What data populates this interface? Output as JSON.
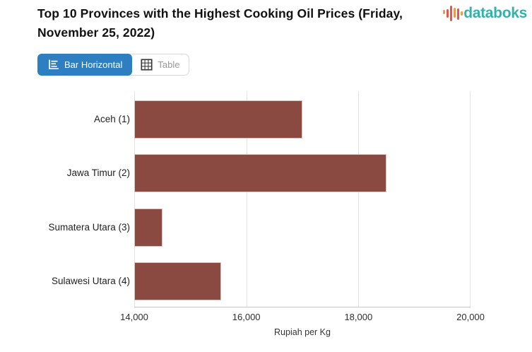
{
  "header": {
    "title": "Top 10 Provinces with the Highest Cooking Oil Prices (Friday, November 25, 2022)",
    "logo_text": "databoks",
    "logo_text_color": "#2fb3ab",
    "logo_bar_colors": {
      "red": "#e2584a",
      "orange": "#f0984a"
    }
  },
  "toolbar": {
    "bar_horizontal_label": "Bar Horizontal",
    "table_label": "Table",
    "active_button": "Bar Horizontal",
    "active_color": "#2e7fc2"
  },
  "chart_data": {
    "type": "bar",
    "orientation": "horizontal",
    "title": "Top 10 Provinces with the Highest Cooking Oil Prices (Friday, November 25, 2022)",
    "categories": [
      "Aceh (1)",
      "Jawa Timur (2)",
      "Sumatera Utara (3)",
      "Sulawesi Utara (4)"
    ],
    "values": [
      17000,
      18500,
      14500,
      15550
    ],
    "xlabel": "Rupiah per Kg",
    "xlim": [
      14000,
      20000
    ],
    "xticks": [
      14000,
      16000,
      18000,
      20000
    ],
    "xtick_labels": [
      "14,000",
      "16,000",
      "18,000",
      "20,000"
    ],
    "bar_color": "#8a4a41",
    "grid": true,
    "legend": false
  }
}
